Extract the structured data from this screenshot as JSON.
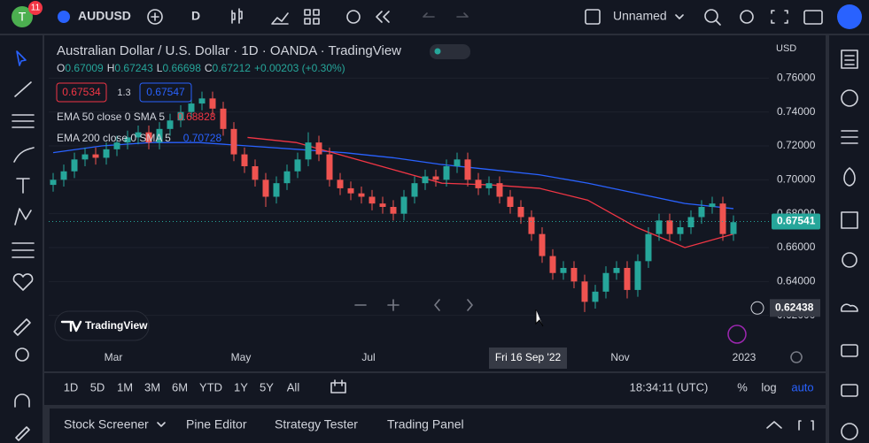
{
  "top_bar": {
    "avatar": "T",
    "badge": "11",
    "symbol": "AUDUSD",
    "interval": "D",
    "layout_name": "Unnamed"
  },
  "legend": {
    "title": "Australian Dollar / U.S. Dollar · 1D · OANDA · TradingView",
    "ohlc": [
      {
        "label": "O",
        "value": "0.67009"
      },
      {
        "label": "H",
        "value": "0.67243"
      },
      {
        "label": "L",
        "value": "0.66698"
      },
      {
        "label": "C",
        "value": "0.67212"
      }
    ],
    "change": "+0.00203 (+0.30%)",
    "sell": "0.67534",
    "spread": "1.3",
    "buy": "0.67547",
    "indicators": [
      {
        "name": "EMA 50 close 0 SMA 5",
        "value": "0.68828",
        "color": "#f23645"
      },
      {
        "name": "EMA 200 close 0 SMA 5",
        "value": "0.70728",
        "color": "#2962ff"
      }
    ]
  },
  "chart": {
    "currency": "USD",
    "ylim": [
      0.6,
      0.78
    ],
    "yticks": [
      {
        "value": 0.76,
        "label": "0.76000"
      },
      {
        "value": 0.74,
        "label": "0.74000"
      },
      {
        "value": 0.72,
        "label": "0.72000"
      },
      {
        "value": 0.7,
        "label": "0.70000"
      },
      {
        "value": 0.68,
        "label": "0.68000"
      },
      {
        "value": 0.66,
        "label": "0.66000"
      },
      {
        "value": 0.64,
        "label": "0.64000"
      },
      {
        "value": 0.62,
        "label": "0.62000"
      }
    ],
    "up_color": "#26a69a",
    "down_color": "#ef5350",
    "open": [
      0.697,
      0.7,
      0.705,
      0.712,
      0.715,
      0.713,
      0.718,
      0.722,
      0.725,
      0.728,
      0.722,
      0.73,
      0.735,
      0.74,
      0.745,
      0.748,
      0.742,
      0.73,
      0.715,
      0.708,
      0.7,
      0.69,
      0.698,
      0.705,
      0.712,
      0.722,
      0.715,
      0.7,
      0.695,
      0.692,
      0.69,
      0.686,
      0.684,
      0.68,
      0.69,
      0.698,
      0.702,
      0.7,
      0.708,
      0.712,
      0.7,
      0.695,
      0.698,
      0.69,
      0.684,
      0.678,
      0.668,
      0.655,
      0.645,
      0.648,
      0.64,
      0.628,
      0.634,
      0.645,
      0.648,
      0.635,
      0.652,
      0.668,
      0.676,
      0.668,
      0.672,
      0.678,
      0.684,
      0.686,
      0.668
    ],
    "high": [
      0.704,
      0.709,
      0.716,
      0.719,
      0.719,
      0.722,
      0.726,
      0.729,
      0.732,
      0.732,
      0.734,
      0.739,
      0.744,
      0.749,
      0.752,
      0.752,
      0.746,
      0.734,
      0.719,
      0.712,
      0.704,
      0.702,
      0.709,
      0.716,
      0.728,
      0.726,
      0.719,
      0.704,
      0.699,
      0.696,
      0.694,
      0.69,
      0.688,
      0.694,
      0.702,
      0.706,
      0.706,
      0.712,
      0.716,
      0.716,
      0.704,
      0.702,
      0.702,
      0.694,
      0.688,
      0.682,
      0.672,
      0.659,
      0.652,
      0.652,
      0.644,
      0.638,
      0.649,
      0.652,
      0.652,
      0.656,
      0.672,
      0.68,
      0.68,
      0.676,
      0.682,
      0.688,
      0.69,
      0.69,
      0.679
    ],
    "low": [
      0.693,
      0.696,
      0.701,
      0.708,
      0.709,
      0.709,
      0.714,
      0.718,
      0.721,
      0.718,
      0.718,
      0.726,
      0.731,
      0.736,
      0.741,
      0.738,
      0.726,
      0.711,
      0.704,
      0.696,
      0.684,
      0.686,
      0.694,
      0.701,
      0.708,
      0.711,
      0.696,
      0.691,
      0.688,
      0.686,
      0.682,
      0.68,
      0.676,
      0.676,
      0.686,
      0.694,
      0.696,
      0.696,
      0.704,
      0.696,
      0.691,
      0.691,
      0.686,
      0.68,
      0.674,
      0.664,
      0.651,
      0.641,
      0.641,
      0.636,
      0.622,
      0.624,
      0.63,
      0.641,
      0.63,
      0.631,
      0.648,
      0.664,
      0.664,
      0.664,
      0.668,
      0.674,
      0.68,
      0.664,
      0.664
    ],
    "close": [
      0.7,
      0.705,
      0.712,
      0.715,
      0.713,
      0.718,
      0.722,
      0.725,
      0.728,
      0.722,
      0.73,
      0.735,
      0.74,
      0.745,
      0.748,
      0.742,
      0.73,
      0.715,
      0.708,
      0.7,
      0.69,
      0.698,
      0.705,
      0.712,
      0.722,
      0.715,
      0.7,
      0.695,
      0.692,
      0.69,
      0.686,
      0.684,
      0.68,
      0.69,
      0.698,
      0.702,
      0.7,
      0.708,
      0.712,
      0.7,
      0.695,
      0.698,
      0.69,
      0.684,
      0.678,
      0.668,
      0.655,
      0.645,
      0.648,
      0.64,
      0.628,
      0.634,
      0.645,
      0.648,
      0.635,
      0.652,
      0.668,
      0.676,
      0.668,
      0.672,
      0.678,
      0.684,
      0.686,
      0.668,
      0.675
    ],
    "ema50": [
      null,
      null,
      null,
      null,
      0.725,
      0.722,
      0.714,
      0.706,
      0.698,
      0.697,
      0.695,
      0.688,
      0.672,
      0.66,
      0.668
    ],
    "ema200": [
      0.716,
      0.72,
      0.722,
      0.722,
      0.72,
      0.718,
      0.716,
      0.713,
      0.709,
      0.706,
      0.703,
      0.698,
      0.692,
      0.686,
      0.683
    ],
    "last_price": {
      "value": 0.67541,
      "label": "0.67541"
    },
    "crosshair_price": {
      "value": 0.62438,
      "label": "0.62438"
    },
    "time_labels": [
      "Mar",
      "May",
      "Jul",
      "Nov",
      "2023"
    ],
    "crosshair_time": "Fri 16 Sep '22",
    "watermark": "TradingView"
  },
  "bottom_bar": {
    "ranges": [
      "1D",
      "5D",
      "1M",
      "3M",
      "6M",
      "YTD",
      "1Y",
      "5Y",
      "All"
    ],
    "clock": "18:34:11 (UTC)",
    "percent": "%",
    "log": "log",
    "auto": "auto"
  },
  "panel_tabs": [
    "Stock Screener",
    "Pine Editor",
    "Strategy Tester",
    "Trading Panel"
  ]
}
